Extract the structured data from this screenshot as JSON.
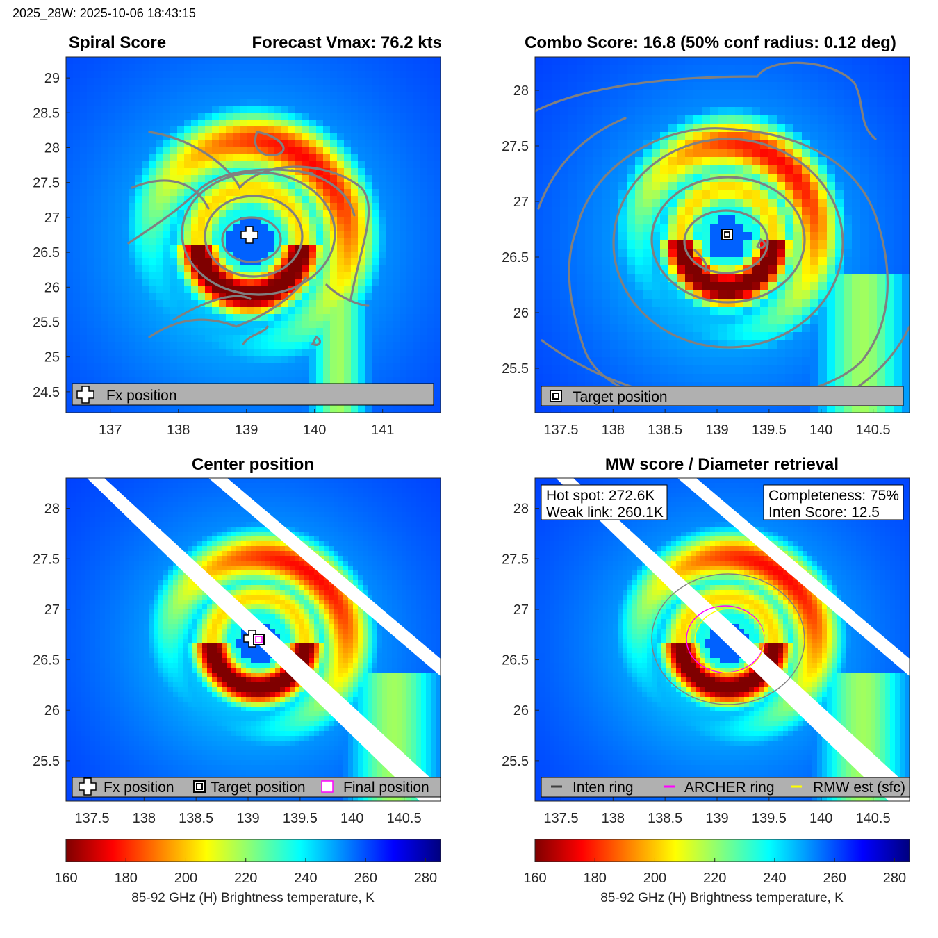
{
  "header": {
    "timestamp": "2025_28W: 2025-10-06 18:43:15"
  },
  "colormap": {
    "name": "jet-reversed",
    "stops": [
      "#7f0000",
      "#ff0000",
      "#ff8000",
      "#ffff00",
      "#80ff80",
      "#00ffff",
      "#0080ff",
      "#0000ff",
      "#00007f"
    ]
  },
  "panels": [
    {
      "id": "spiral",
      "title_left": "Spiral Score",
      "title_right": "Forecast Vmax: 76.2 kts",
      "xlim": [
        136.35,
        141.85
      ],
      "ylim": [
        24.2,
        29.3
      ],
      "xticks": [
        137,
        138,
        139,
        140,
        141
      ],
      "xtick_labels": [
        "137",
        "138",
        "139",
        "140",
        "141"
      ],
      "yticks": [
        24.5,
        25,
        25.5,
        26,
        26.5,
        27,
        27.5,
        28,
        28.5,
        29
      ],
      "ytick_labels": [
        "24.5",
        "25",
        "25.5",
        "26",
        "26.5",
        "27",
        "27.5",
        "28",
        "28.5",
        "29"
      ],
      "center": [
        139.05,
        26.65
      ],
      "legend": [
        {
          "marker": "fx-cross",
          "label": "Fx position"
        }
      ]
    },
    {
      "id": "combo",
      "title_left": "Combo Score: 16.8  (50% conf radius: 0.12 deg)",
      "title_right": "",
      "xlim": [
        137.25,
        140.85
      ],
      "ylim": [
        25.1,
        28.3
      ],
      "xticks": [
        137.5,
        138,
        138.5,
        139,
        139.5,
        140,
        140.5
      ],
      "xtick_labels": [
        "137.5",
        "138",
        "138.5",
        "139",
        "139.5",
        "140",
        "140.5"
      ],
      "yticks": [
        25.5,
        26,
        26.5,
        27,
        27.5,
        28
      ],
      "ytick_labels": [
        "25.5",
        "26",
        "26.5",
        "27",
        "27.5",
        "28"
      ],
      "center": [
        139.1,
        26.67
      ],
      "legend": [
        {
          "marker": "target-square",
          "label": "Target position"
        }
      ]
    },
    {
      "id": "center",
      "title_left": "",
      "title_center": "Center position",
      "xlim": [
        137.25,
        140.85
      ],
      "ylim": [
        25.1,
        28.3
      ],
      "xticks": [
        137.5,
        138,
        138.5,
        139,
        139.5,
        140,
        140.5
      ],
      "xtick_labels": [
        "137.5",
        "138",
        "138.5",
        "139",
        "139.5",
        "140",
        "140.5"
      ],
      "yticks": [
        25.5,
        26,
        26.5,
        27,
        27.5,
        28
      ],
      "ytick_labels": [
        "25.5",
        "26",
        "26.5",
        "27",
        "27.5",
        "28"
      ],
      "center": [
        139.1,
        26.67
      ],
      "legend": [
        {
          "marker": "fx-cross",
          "label": "Fx position"
        },
        {
          "marker": "target-square",
          "label": "Target position"
        },
        {
          "marker": "final-square",
          "label": "Final position"
        }
      ]
    },
    {
      "id": "mw",
      "title_left": "",
      "title_center": "MW score / Diameter retrieval",
      "xlim": [
        137.25,
        140.85
      ],
      "ylim": [
        25.1,
        28.3
      ],
      "xticks": [
        137.5,
        138,
        138.5,
        139,
        139.5,
        140,
        140.5
      ],
      "xtick_labels": [
        "137.5",
        "138",
        "138.5",
        "139",
        "139.5",
        "140",
        "140.5"
      ],
      "yticks": [
        25.5,
        26,
        26.5,
        27,
        27.5,
        28
      ],
      "ytick_labels": [
        "25.5",
        "26",
        "26.5",
        "27",
        "27.5",
        "28"
      ],
      "center": [
        139.1,
        26.67
      ],
      "info_left": [
        "Hot spot: 272.6K",
        "Weak link: 260.1K"
      ],
      "info_right": [
        "Completeness: 75%",
        "Inten Score: 12.5"
      ],
      "legend": [
        {
          "marker": "line",
          "color": "#404040",
          "label": "Inten ring"
        },
        {
          "marker": "line",
          "color": "#ff00ff",
          "label": "ARCHER ring"
        },
        {
          "marker": "line",
          "color": "#ffff00",
          "label": "RMW est (sfc)"
        }
      ]
    }
  ],
  "colorbars": [
    {
      "ticks": [
        160,
        180,
        200,
        220,
        240,
        260,
        280
      ],
      "tick_labels": [
        "160",
        "180",
        "200",
        "220",
        "240",
        "260",
        "280"
      ],
      "range": [
        160,
        285
      ],
      "label": "85-92 GHz (H) Brightness temperature, K"
    },
    {
      "ticks": [
        160,
        180,
        200,
        220,
        240,
        260,
        280
      ],
      "tick_labels": [
        "160",
        "180",
        "200",
        "220",
        "240",
        "260",
        "280"
      ],
      "range": [
        160,
        285
      ],
      "label": "85-92 GHz (H) Brightness temperature, K"
    }
  ]
}
